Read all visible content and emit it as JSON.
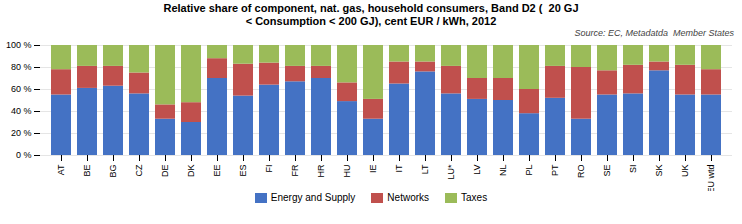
{
  "chart_data": {
    "type": "bar",
    "stacked": true,
    "title": "Relative share of component, nat. gas, household consumers, Band D2 (  20 GJ\n< Consumption < 200 GJ), cent EUR / kWh, 2012",
    "annotations": [
      "Source: EC, Metadatda  Member States"
    ],
    "categories": [
      "AT",
      "BE",
      "BG",
      "CZ",
      "DE",
      "DK",
      "EE",
      "ES",
      "FI",
      "FR",
      "HR",
      "HU",
      "IE",
      "IT",
      "LT",
      "LU*",
      "LV",
      "NL",
      "PL",
      "PT",
      "RO",
      "SE",
      "SI",
      "SK",
      "UK",
      "EU wtd"
    ],
    "series": [
      {
        "name": "Energy and Supply",
        "color": "#4472C4",
        "values": [
          55,
          61,
          63,
          56,
          33,
          30,
          70,
          54,
          64,
          67,
          70,
          49,
          33,
          65,
          76,
          56,
          51,
          50,
          38,
          52,
          33,
          55,
          56,
          77,
          55,
          55
        ]
      },
      {
        "name": "Networks",
        "color": "#C0504D",
        "values": [
          23,
          20,
          18,
          19,
          13,
          18,
          18,
          29,
          20,
          14,
          11,
          17,
          18,
          20,
          9,
          25,
          19,
          20,
          22,
          29,
          47,
          22,
          26,
          8,
          27,
          23
        ]
      },
      {
        "name": "Taxes",
        "color": "#9BBB59",
        "values": [
          22,
          19,
          19,
          25,
          54,
          52,
          12,
          17,
          16,
          19,
          19,
          34,
          49,
          15,
          15,
          19,
          30,
          30,
          40,
          19,
          20,
          23,
          18,
          15,
          18,
          22
        ]
      }
    ],
    "ylim": [
      0,
      100
    ],
    "yticks": [
      {
        "value": 0,
        "label": "0 %"
      },
      {
        "value": 20,
        "label": "20 %"
      },
      {
        "value": 40,
        "label": "40 %"
      },
      {
        "value": 60,
        "label": "60 %"
      },
      {
        "value": 80,
        "label": "80 %"
      },
      {
        "value": 100,
        "label": "100 %"
      }
    ],
    "grid": true,
    "legend": "bottom"
  }
}
